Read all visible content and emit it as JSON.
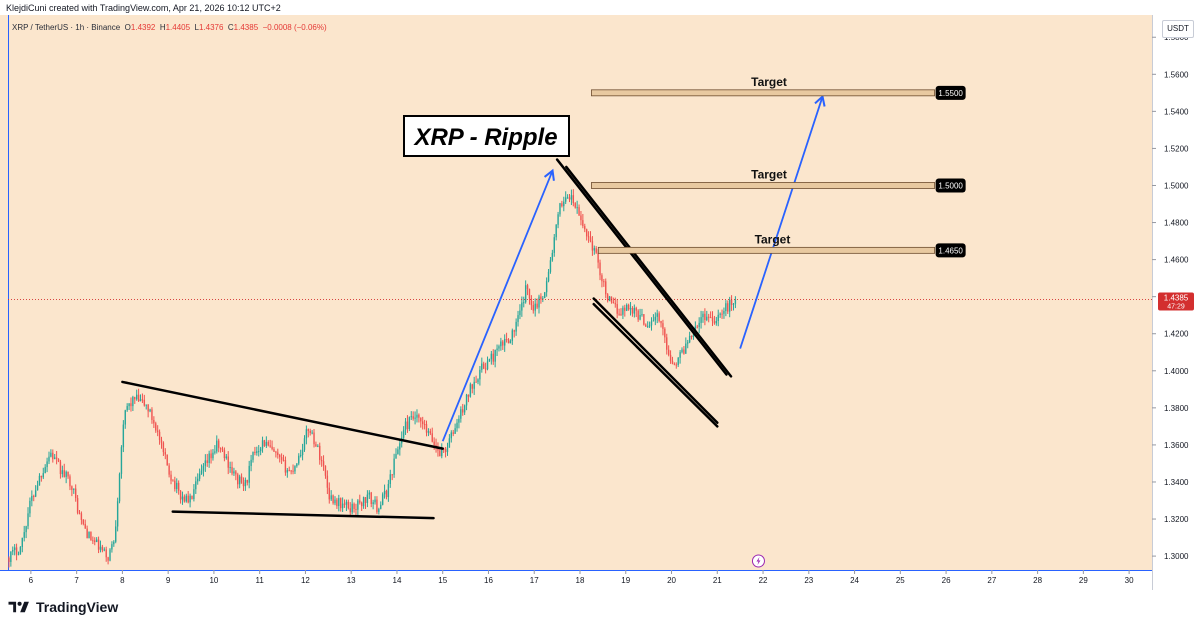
{
  "header": {
    "credit": "KlejdiCuni created with TradingView.com, Apr 21, 2026 10:12 UTC+2"
  },
  "legend": {
    "symbol": "XRP / TetherUS · 1h · Binance",
    "open_label": "O",
    "open": "1.4392",
    "high_label": "H",
    "high": "1.4405",
    "low_label": "L",
    "low": "1.4376",
    "close_label": "C",
    "close": "1.4385",
    "change": "−0.0008 (−0.06%)"
  },
  "currency": "USDT",
  "branding": {
    "name": "TradingView",
    "logo_icon": "tradingview-logo-icon"
  },
  "colors": {
    "background": "#fbe6cd",
    "bull": "#26a69a",
    "bear": "#ef5350",
    "arrow": "#2962ff",
    "target_fill": "#e8c9a0",
    "price_label": "#d32f2f"
  },
  "chart_data": {
    "type": "candlestick",
    "xlabel": "",
    "ylabel": "",
    "x_ticks": [
      "6",
      "7",
      "8",
      "9",
      "10",
      "11",
      "12",
      "13",
      "14",
      "15",
      "16",
      "17",
      "18",
      "19",
      "20",
      "21",
      "22",
      "23",
      "24",
      "25",
      "26",
      "27",
      "28",
      "29",
      "30"
    ],
    "y_ticks": [
      "1.3000",
      "1.3200",
      "1.3400",
      "1.3600",
      "1.3800",
      "1.4000",
      "1.4200",
      "1.4400",
      "1.4600",
      "1.4800",
      "1.5000",
      "1.5200",
      "1.5400",
      "1.5600",
      "1.5800"
    ],
    "x_range": [
      5.5,
      30.5
    ],
    "y_range": [
      1.2925,
      1.592
    ],
    "current_price": "1.4385",
    "countdown": "47:29",
    "annotations": {
      "title": "XRP - Ripple",
      "targets": [
        {
          "label": "Target",
          "price": "1.5500"
        },
        {
          "label": "Target",
          "price": "1.5000"
        },
        {
          "label": "Target",
          "price": "1.4650"
        }
      ]
    },
    "trend_lines": [
      {
        "name": "triangle-upper",
        "from": [
          8.0,
          1.394
        ],
        "to": [
          15.0,
          1.358
        ]
      },
      {
        "name": "triangle-lower",
        "from": [
          9.1,
          1.324
        ],
        "to": [
          14.8,
          1.3205
        ]
      },
      {
        "name": "wedge-upper-a",
        "from": [
          17.5,
          1.514
        ],
        "to": [
          21.2,
          1.398
        ]
      },
      {
        "name": "wedge-upper-b",
        "from": [
          17.7,
          1.51
        ],
        "to": [
          21.3,
          1.397
        ]
      },
      {
        "name": "wedge-lower-a",
        "from": [
          18.3,
          1.439
        ],
        "to": [
          21.0,
          1.372
        ]
      },
      {
        "name": "wedge-lower-b",
        "from": [
          18.3,
          1.436
        ],
        "to": [
          21.0,
          1.37
        ]
      }
    ],
    "arrows": [
      {
        "from": [
          15.0,
          1.362
        ],
        "to": [
          17.4,
          1.508
        ]
      },
      {
        "from": [
          21.5,
          1.412
        ],
        "to": [
          23.3,
          1.548
        ]
      }
    ],
    "path": [
      [
        5.5,
        1.299
      ],
      [
        5.8,
        1.305
      ],
      [
        6.0,
        1.328
      ],
      [
        6.2,
        1.342
      ],
      [
        6.45,
        1.356
      ],
      [
        6.7,
        1.345
      ],
      [
        6.9,
        1.34
      ],
      [
        7.1,
        1.32
      ],
      [
        7.3,
        1.31
      ],
      [
        7.5,
        1.305
      ],
      [
        7.7,
        1.299
      ],
      [
        7.85,
        1.31
      ],
      [
        8.0,
        1.36
      ],
      [
        8.1,
        1.38
      ],
      [
        8.3,
        1.385
      ],
      [
        8.55,
        1.381
      ],
      [
        8.75,
        1.37
      ],
      [
        8.9,
        1.356
      ],
      [
        9.1,
        1.342
      ],
      [
        9.3,
        1.332
      ],
      [
        9.5,
        1.33
      ],
      [
        9.7,
        1.342
      ],
      [
        9.9,
        1.352
      ],
      [
        10.1,
        1.36
      ],
      [
        10.3,
        1.352
      ],
      [
        10.5,
        1.342
      ],
      [
        10.7,
        1.338
      ],
      [
        10.9,
        1.356
      ],
      [
        11.1,
        1.362
      ],
      [
        11.3,
        1.356
      ],
      [
        11.5,
        1.35
      ],
      [
        11.7,
        1.345
      ],
      [
        11.9,
        1.355
      ],
      [
        12.1,
        1.37
      ],
      [
        12.25,
        1.36
      ],
      [
        12.4,
        1.35
      ],
      [
        12.55,
        1.332
      ],
      [
        12.8,
        1.328
      ],
      [
        13.0,
        1.326
      ],
      [
        13.2,
        1.328
      ],
      [
        13.4,
        1.332
      ],
      [
        13.6,
        1.326
      ],
      [
        13.8,
        1.335
      ],
      [
        14.0,
        1.355
      ],
      [
        14.2,
        1.37
      ],
      [
        14.4,
        1.375
      ],
      [
        14.6,
        1.37
      ],
      [
        14.8,
        1.362
      ],
      [
        14.95,
        1.356
      ],
      [
        15.1,
        1.358
      ],
      [
        15.3,
        1.37
      ],
      [
        15.5,
        1.382
      ],
      [
        15.7,
        1.395
      ],
      [
        15.9,
        1.402
      ],
      [
        16.1,
        1.407
      ],
      [
        16.35,
        1.415
      ],
      [
        16.55,
        1.42
      ],
      [
        16.7,
        1.43
      ],
      [
        16.85,
        1.445
      ],
      [
        17.0,
        1.435
      ],
      [
        17.15,
        1.438
      ],
      [
        17.3,
        1.448
      ],
      [
        17.45,
        1.47
      ],
      [
        17.6,
        1.49
      ],
      [
        17.75,
        1.495
      ],
      [
        17.9,
        1.49
      ],
      [
        18.05,
        1.48
      ],
      [
        18.25,
        1.47
      ],
      [
        18.4,
        1.46
      ],
      [
        18.55,
        1.445
      ],
      [
        18.7,
        1.435
      ],
      [
        18.9,
        1.432
      ],
      [
        19.1,
        1.435
      ],
      [
        19.3,
        1.43
      ],
      [
        19.5,
        1.425
      ],
      [
        19.7,
        1.43
      ],
      [
        19.85,
        1.42
      ],
      [
        20.0,
        1.406
      ],
      [
        20.15,
        1.405
      ],
      [
        20.35,
        1.415
      ],
      [
        20.55,
        1.425
      ],
      [
        20.75,
        1.43
      ],
      [
        20.95,
        1.428
      ],
      [
        21.15,
        1.432
      ],
      [
        21.4,
        1.4385
      ]
    ]
  }
}
